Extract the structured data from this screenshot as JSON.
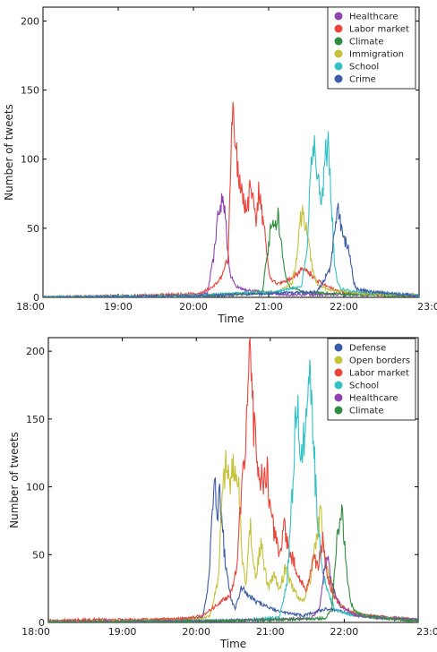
{
  "chart_data": [
    {
      "type": "line",
      "xlabel": "Time",
      "ylabel": "Number of tweets",
      "x_ticks": [
        "18:00",
        "19:00",
        "20:00",
        "21:00",
        "22:00",
        "23:00"
      ],
      "y_ticks": [
        0,
        50,
        100,
        150,
        200
      ],
      "xlim": [
        0,
        300
      ],
      "ylim": [
        0,
        210
      ],
      "x_unit": "minutes after 18:00",
      "legend_position": "top-right",
      "grid": false,
      "series": [
        {
          "name": "Healthcare",
          "color": "#8e44ad",
          "peaks": [
            [
              20,
              0
            ],
            [
              190,
              1
            ],
            [
              210,
              3
            ],
            [
              218,
              30
            ],
            [
              224,
              60
            ],
            [
              228,
              70
            ],
            [
              230,
              75
            ],
            [
              233,
              55
            ],
            [
              236,
              30
            ],
            [
              240,
              15
            ],
            [
              246,
              8
            ],
            [
              260,
              5
            ],
            [
              280,
              4
            ],
            [
              300,
              2
            ]
          ]
        },
        {
          "name": "Labor market",
          "color": "#e8453c",
          "peaks": [
            [
              0,
              0
            ],
            [
              110,
              1
            ],
            [
              170,
              2
            ],
            [
              200,
              3
            ],
            [
              218,
              8
            ],
            [
              228,
              15
            ],
            [
              236,
              28
            ],
            [
              240,
              105
            ],
            [
              242,
              137
            ],
            [
              245,
              110
            ],
            [
              250,
              90
            ],
            [
              255,
              75
            ],
            [
              260,
              60
            ],
            [
              265,
              80
            ],
            [
              268,
              70
            ],
            [
              272,
              58
            ],
            [
              276,
              80
            ],
            [
              280,
              55
            ],
            [
              284,
              45
            ],
            [
              288,
              20
            ],
            [
              292,
              12
            ],
            [
              300,
              10
            ],
            [
              310,
              12
            ],
            [
              320,
              15
            ],
            [
              330,
              20
            ],
            [
              340,
              18
            ],
            [
              350,
              12
            ],
            [
              360,
              9
            ],
            [
              370,
              6
            ],
            [
              380,
              4
            ],
            [
              400,
              3
            ],
            [
              440,
              2
            ],
            [
              480,
              1
            ]
          ]
        },
        {
          "name": "Climate",
          "color": "#2e8b3f",
          "peaks": [
            [
              0,
              0
            ],
            [
              200,
              1
            ],
            [
              230,
              2
            ],
            [
              260,
              3
            ],
            [
              280,
              4
            ],
            [
              286,
              30
            ],
            [
              292,
              55
            ],
            [
              296,
              48
            ],
            [
              300,
              60
            ],
            [
              304,
              40
            ],
            [
              308,
              20
            ],
            [
              314,
              8
            ],
            [
              330,
              4
            ],
            [
              360,
              3
            ],
            [
              400,
              2
            ],
            [
              480,
              1
            ]
          ]
        },
        {
          "name": "Immigration",
          "color": "#c4c23a",
          "peaks": [
            [
              0,
              0
            ],
            [
              200,
              1
            ],
            [
              240,
              2
            ],
            [
              300,
              4
            ],
            [
              318,
              10
            ],
            [
              324,
              30
            ],
            [
              328,
              55
            ],
            [
              332,
              62
            ],
            [
              336,
              50
            ],
            [
              340,
              35
            ],
            [
              346,
              15
            ],
            [
              352,
              8
            ],
            [
              370,
              5
            ],
            [
              400,
              3
            ],
            [
              480,
              1
            ]
          ]
        },
        {
          "name": "School",
          "color": "#33c1c5",
          "peaks": [
            [
              0,
              0
            ],
            [
              200,
              1
            ],
            [
              250,
              3
            ],
            [
              300,
              4
            ],
            [
              330,
              8
            ],
            [
              338,
              40
            ],
            [
              342,
              95
            ],
            [
              344,
              113
            ],
            [
              348,
              105
            ],
            [
              352,
              80
            ],
            [
              356,
              65
            ],
            [
              360,
              100
            ],
            [
              364,
              110
            ],
            [
              368,
              70
            ],
            [
              372,
              25
            ],
            [
              376,
              10
            ],
            [
              380,
              6
            ],
            [
              400,
              4
            ],
            [
              440,
              3
            ],
            [
              480,
              1
            ]
          ]
        },
        {
          "name": "Crime",
          "color": "#3b5ba5",
          "peaks": [
            [
              0,
              0
            ],
            [
              200,
              1
            ],
            [
              250,
              2
            ],
            [
              300,
              3
            ],
            [
              350,
              4
            ],
            [
              366,
              20
            ],
            [
              372,
              45
            ],
            [
              376,
              68
            ],
            [
              380,
              50
            ],
            [
              386,
              40
            ],
            [
              392,
              30
            ],
            [
              396,
              12
            ],
            [
              400,
              6
            ],
            [
              420,
              4
            ],
            [
              460,
              2
            ],
            [
              480,
              1
            ]
          ]
        }
      ]
    },
    {
      "type": "line",
      "xlabel": "Time",
      "ylabel": "Number of tweets",
      "x_ticks": [
        "18:00",
        "19:00",
        "20:00",
        "21:00",
        "22:00",
        "23:00"
      ],
      "y_ticks": [
        0,
        50,
        100,
        150,
        200
      ],
      "xlim": [
        0,
        300
      ],
      "ylim": [
        0,
        210
      ],
      "x_unit": "minutes after 18:00",
      "legend_position": "top-right",
      "grid": false,
      "series": [
        {
          "name": "Defense",
          "color": "#3b5ba5",
          "peaks": [
            [
              0,
              1
            ],
            [
              100,
              1
            ],
            [
              180,
              2
            ],
            [
              200,
              4
            ],
            [
              208,
              30
            ],
            [
              212,
              70
            ],
            [
              216,
              106
            ],
            [
              220,
              80
            ],
            [
              222,
              95
            ],
            [
              226,
              70
            ],
            [
              230,
              40
            ],
            [
              236,
              20
            ],
            [
              242,
              10
            ],
            [
              250,
              25
            ],
            [
              260,
              20
            ],
            [
              270,
              15
            ],
            [
              290,
              10
            ],
            [
              300,
              8
            ],
            [
              330,
              5
            ],
            [
              360,
              10
            ],
            [
              380,
              8
            ],
            [
              400,
              5
            ],
            [
              440,
              3
            ],
            [
              480,
              1
            ]
          ]
        },
        {
          "name": "Open borders",
          "color": "#c4c23a",
          "peaks": [
            [
              0,
              1
            ],
            [
              100,
              1
            ],
            [
              200,
              3
            ],
            [
              210,
              5
            ],
            [
              220,
              30
            ],
            [
              226,
              90
            ],
            [
              230,
              118
            ],
            [
              236,
              105
            ],
            [
              242,
              120
            ],
            [
              248,
              95
            ],
            [
              252,
              45
            ],
            [
              256,
              25
            ],
            [
              262,
              73
            ],
            [
              266,
              40
            ],
            [
              270,
              35
            ],
            [
              276,
              60
            ],
            [
              280,
              40
            ],
            [
              286,
              25
            ],
            [
              292,
              35
            ],
            [
              300,
              25
            ],
            [
              308,
              40
            ],
            [
              314,
              30
            ],
            [
              320,
              22
            ],
            [
              330,
              15
            ],
            [
              340,
              30
            ],
            [
              350,
              70
            ],
            [
              354,
              80
            ],
            [
              358,
              50
            ],
            [
              366,
              30
            ],
            [
              376,
              15
            ],
            [
              390,
              8
            ],
            [
              420,
              4
            ],
            [
              480,
              1
            ]
          ]
        },
        {
          "name": "Labor market",
          "color": "#e8453c",
          "peaks": [
            [
              0,
              1
            ],
            [
              60,
              2
            ],
            [
              120,
              2
            ],
            [
              180,
              3
            ],
            [
              200,
              5
            ],
            [
              236,
              20
            ],
            [
              244,
              40
            ],
            [
              252,
              100
            ],
            [
              258,
              150
            ],
            [
              262,
              201
            ],
            [
              266,
              150
            ],
            [
              272,
              120
            ],
            [
              278,
              100
            ],
            [
              284,
              110
            ],
            [
              288,
              80
            ],
            [
              296,
              60
            ],
            [
              300,
              50
            ],
            [
              306,
              70
            ],
            [
              312,
              55
            ],
            [
              318,
              45
            ],
            [
              324,
              35
            ],
            [
              330,
              28
            ],
            [
              336,
              25
            ],
            [
              344,
              50
            ],
            [
              350,
              40
            ],
            [
              356,
              60
            ],
            [
              362,
              35
            ],
            [
              370,
              20
            ],
            [
              380,
              12
            ],
            [
              400,
              6
            ],
            [
              440,
              4
            ],
            [
              480,
              2
            ]
          ]
        },
        {
          "name": "School",
          "color": "#33c1c5",
          "peaks": [
            [
              0,
              0
            ],
            [
              200,
              1
            ],
            [
              260,
              2
            ],
            [
              300,
              4
            ],
            [
              310,
              30
            ],
            [
              316,
              90
            ],
            [
              320,
              140
            ],
            [
              324,
              160
            ],
            [
              328,
              120
            ],
            [
              334,
              150
            ],
            [
              338,
              178
            ],
            [
              342,
              165
            ],
            [
              346,
              110
            ],
            [
              350,
              70
            ],
            [
              356,
              35
            ],
            [
              364,
              20
            ],
            [
              372,
              10
            ],
            [
              390,
              6
            ],
            [
              420,
              4
            ],
            [
              480,
              2
            ]
          ]
        },
        {
          "name": "Healthcare",
          "color": "#8e44ad",
          "peaks": [
            [
              0,
              0
            ],
            [
              200,
              1
            ],
            [
              280,
              2
            ],
            [
              340,
              3
            ],
            [
              352,
              10
            ],
            [
              358,
              40
            ],
            [
              362,
              50
            ],
            [
              366,
              35
            ],
            [
              372,
              20
            ],
            [
              380,
              12
            ],
            [
              390,
              8
            ],
            [
              400,
              5
            ],
            [
              440,
              3
            ],
            [
              480,
              2
            ]
          ]
        },
        {
          "name": "Climate",
          "color": "#2e8b3f",
          "peaks": [
            [
              0,
              0
            ],
            [
              200,
              1
            ],
            [
              300,
              2
            ],
            [
              360,
              3
            ],
            [
              368,
              10
            ],
            [
              372,
              40
            ],
            [
              376,
              70
            ],
            [
              380,
              86
            ],
            [
              384,
              60
            ],
            [
              388,
              35
            ],
            [
              392,
              15
            ],
            [
              398,
              8
            ],
            [
              410,
              5
            ],
            [
              440,
              3
            ],
            [
              480,
              1
            ]
          ]
        }
      ]
    }
  ]
}
